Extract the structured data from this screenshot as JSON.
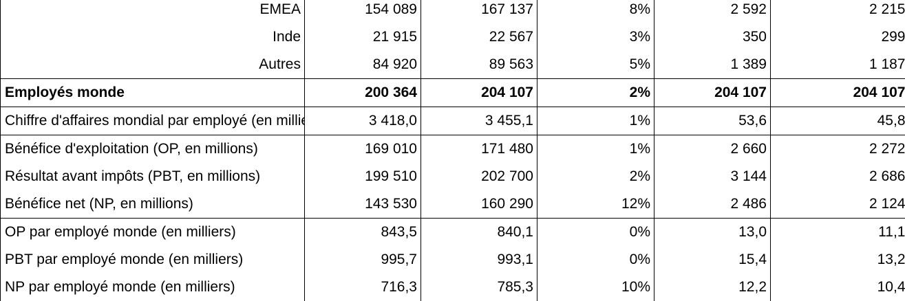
{
  "rows": [
    {
      "label": "EMEA",
      "v1": "154 089",
      "v2": "167 137",
      "v3": "8%",
      "v4": "2 592",
      "v5": "2 215"
    },
    {
      "label": "Inde",
      "v1": "21 915",
      "v2": "22 567",
      "v3": "3%",
      "v4": "350",
      "v5": "299"
    },
    {
      "label": "Autres",
      "v1": "84 920",
      "v2": "89 563",
      "v3": "5%",
      "v4": "1 389",
      "v5": "1 187"
    },
    {
      "label": "Employés monde",
      "v1": "200 364",
      "v2": "204 107",
      "v3": "2%",
      "v4": "204 107",
      "v5": "204 107"
    },
    {
      "label": "Chiffre d'affaires mondial par employé (en milliers)",
      "v1": "3 418,0",
      "v2": "3 455,1",
      "v3": "1%",
      "v4": "53,6",
      "v5": "45,8"
    },
    {
      "label": "Bénéfice d'exploitation (OP, en millions)",
      "v1": "169 010",
      "v2": "171 480",
      "v3": "1%",
      "v4": "2 660",
      "v5": "2 272"
    },
    {
      "label": "Résultat avant impôts (PBT, en millions)",
      "v1": "199 510",
      "v2": "202 700",
      "v3": "2%",
      "v4": "3 144",
      "v5": "2 686"
    },
    {
      "label": "Bénéfice net (NP, en millions)",
      "v1": "143 530",
      "v2": "160 290",
      "v3": "12%",
      "v4": "2 486",
      "v5": "2 124"
    },
    {
      "label": "OP par employé monde (en milliers)",
      "v1": "843,5",
      "v2": "840,1",
      "v3": "0%",
      "v4": "13,0",
      "v5": "11,1"
    },
    {
      "label": "PBT par employé monde (en milliers)",
      "v1": "995,7",
      "v2": "993,1",
      "v3": "0%",
      "v4": "15,4",
      "v5": "13,2"
    },
    {
      "label": "NP par employé monde (en milliers)",
      "v1": "716,3",
      "v2": "785,3",
      "v3": "10%",
      "v4": "12,2",
      "v5": "10,4"
    }
  ]
}
